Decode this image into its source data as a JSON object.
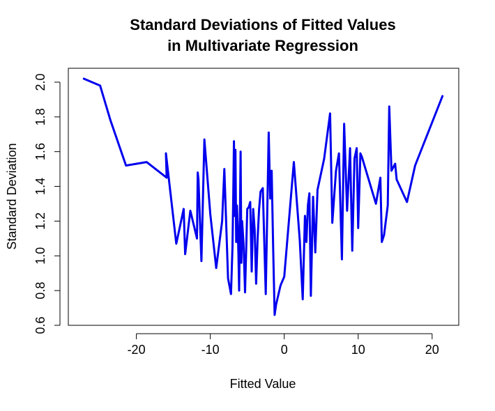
{
  "chart_data": {
    "type": "line",
    "title_lines": [
      "Standard Deviations of Fitted Values",
      "in Multivariate Regression"
    ],
    "xlabel": "Fitted Value",
    "ylabel": "Standard Deviation",
    "xlim": [
      -29.2,
      23.6
    ],
    "ylim": [
      0.6,
      2.08
    ],
    "x_ticks": [
      -20,
      -10,
      0,
      10,
      20
    ],
    "x_tick_labels": [
      "-20",
      "-10",
      "0",
      "10",
      "20"
    ],
    "y_ticks": [
      0.6,
      0.8,
      1.0,
      1.2,
      1.4,
      1.6,
      1.8,
      2.0
    ],
    "y_tick_labels": [
      "0.6",
      "0.8",
      "1.0",
      "1.2",
      "1.4",
      "1.6",
      "1.8",
      "2.0"
    ],
    "grid": false,
    "line_color": "#0000EE",
    "series": [
      {
        "x": [
          -27.1,
          -24.9,
          -23.5,
          -21.4,
          -18.6,
          -15.9,
          -16.0,
          -14.6,
          -13.6,
          -13.4,
          -12.7,
          -11.8,
          -11.7,
          -11.6,
          -11.2,
          -10.8,
          -10.0,
          -9.2,
          -8.4,
          -8.1,
          -7.6,
          -7.2,
          -7.0,
          -6.9,
          -6.8,
          -6.7,
          -6.6,
          -6.5,
          -6.4,
          -6.3,
          -6.2,
          -6.1,
          -6.0,
          -5.9,
          -5.8,
          -5.7,
          -5.5,
          -5.3,
          -5.0,
          -4.8,
          -4.6,
          -4.4,
          -4.2,
          -4.0,
          -3.8,
          -3.6,
          -3.4,
          -3.2,
          -2.9,
          -2.5,
          -2.1,
          -1.9,
          -1.7,
          -1.5,
          -1.3,
          -1.1,
          -0.5,
          0.0,
          1.3,
          2.1,
          2.5,
          2.8,
          3.0,
          3.2,
          3.4,
          3.6,
          3.9,
          4.2,
          4.5,
          5.4,
          6.2,
          6.5,
          7.0,
          7.4,
          7.8,
          8.1,
          8.5,
          8.9,
          9.2,
          9.5,
          9.8,
          10.0,
          10.3,
          10.5,
          12.4,
          13.0,
          13.2,
          13.5,
          14.0,
          14.2,
          14.5,
          15.0,
          15.2,
          16.6,
          17.7,
          21.4
        ],
        "y": [
          2.02,
          1.98,
          1.78,
          1.52,
          1.54,
          1.45,
          1.59,
          1.07,
          1.27,
          1.01,
          1.26,
          1.1,
          1.48,
          1.44,
          0.97,
          1.67,
          1.24,
          0.93,
          1.2,
          1.5,
          0.87,
          0.78,
          1.05,
          1.33,
          1.66,
          1.23,
          1.61,
          1.08,
          1.29,
          1.18,
          1.02,
          0.8,
          1.19,
          1.6,
          0.96,
          1.2,
          1.07,
          0.79,
          1.27,
          1.28,
          1.31,
          0.91,
          1.27,
          1.15,
          0.84,
          1.1,
          1.27,
          1.37,
          1.39,
          0.78,
          1.71,
          1.33,
          1.49,
          1.05,
          0.66,
          0.72,
          0.83,
          0.88,
          1.54,
          1.09,
          0.75,
          1.23,
          1.08,
          1.29,
          1.36,
          0.77,
          1.34,
          1.02,
          1.38,
          1.56,
          1.82,
          1.19,
          1.49,
          1.59,
          0.98,
          1.76,
          1.26,
          1.62,
          1.03,
          1.56,
          1.62,
          1.16,
          1.59,
          1.57,
          1.3,
          1.45,
          1.08,
          1.12,
          1.29,
          1.86,
          1.49,
          1.53,
          1.44,
          1.31,
          1.52,
          1.92
        ]
      }
    ]
  }
}
